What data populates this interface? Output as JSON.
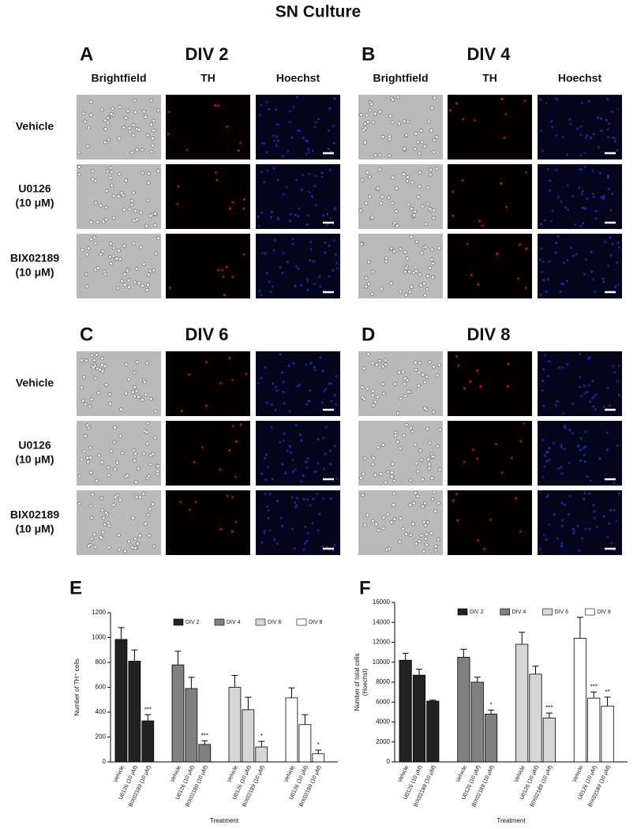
{
  "title": "SN Culture",
  "panels": [
    {
      "letter": "A",
      "title": "DIV 2",
      "columns": [
        "Brightfield",
        "TH",
        "Hoechst"
      ],
      "rows": [
        [
          "Vehicle"
        ],
        [
          "U0126",
          "(10 μM)"
        ],
        [
          "BIX02189",
          "(10 μM)"
        ]
      ]
    },
    {
      "letter": "B",
      "title": "DIV 4",
      "columns": [
        "Brightfield",
        "TH",
        "Hoechst"
      ]
    },
    {
      "letter": "C",
      "title": "DIV 6",
      "rows": [
        [
          "Vehicle"
        ],
        [
          "U0126",
          "(10 μM)"
        ],
        [
          "BIX02189",
          "(10 μM)"
        ]
      ]
    },
    {
      "letter": "D",
      "title": "DIV 8"
    }
  ],
  "chart_data": [
    {
      "type": "bar",
      "title": "E",
      "ylabel": [
        "Number of TH⁺ cells"
      ],
      "xlabel": "Treatment",
      "legend": "top",
      "categories": [
        "Vehicle",
        "U0126 (10 μM)",
        "BIX02189 (10 μM)"
      ],
      "ylim": [
        0,
        1200
      ],
      "yticks": [
        0,
        200,
        400,
        600,
        800,
        1000,
        1200
      ],
      "series": [
        {
          "name": "DIV 2",
          "color": "#222222",
          "values": [
            985,
            810,
            330
          ],
          "errors": [
            95,
            90,
            50
          ],
          "stars": [
            null,
            null,
            "***"
          ]
        },
        {
          "name": "DIV 4",
          "color": "#808080",
          "values": [
            780,
            590,
            140
          ],
          "errors": [
            110,
            90,
            30
          ],
          "stars": [
            null,
            null,
            "***"
          ]
        },
        {
          "name": "DIV 6",
          "color": "#d6d6d6",
          "values": [
            600,
            420,
            120
          ],
          "errors": [
            95,
            100,
            45
          ],
          "stars": [
            null,
            null,
            "*"
          ]
        },
        {
          "name": "DIV 8",
          "color": "#ffffff",
          "values": [
            515,
            300,
            65
          ],
          "errors": [
            80,
            80,
            30
          ],
          "stars": [
            null,
            null,
            "*"
          ]
        }
      ]
    },
    {
      "type": "bar",
      "title": "F",
      "ylabel": [
        "Number of total cells",
        "(Hoechst)"
      ],
      "xlabel": "Treatment",
      "legend": "top",
      "categories": [
        "Vehicle",
        "U0126 (10 μM)",
        "BIX02189 (10 μM)"
      ],
      "ylim": [
        0,
        16000
      ],
      "yticks": [
        0,
        2000,
        4000,
        6000,
        8000,
        10000,
        12000,
        14000,
        16000
      ],
      "series": [
        {
          "name": "DIV 2",
          "color": "#222222",
          "values": [
            10200,
            8700,
            6100
          ],
          "errors": [
            700,
            600,
            100
          ],
          "stars": [
            null,
            null,
            null
          ]
        },
        {
          "name": "DIV 4",
          "color": "#808080",
          "values": [
            10500,
            8000,
            4800
          ],
          "errors": [
            800,
            500,
            400
          ],
          "stars": [
            null,
            null,
            "*"
          ]
        },
        {
          "name": "DIV 6",
          "color": "#d6d6d6",
          "values": [
            11800,
            8800,
            4400
          ],
          "errors": [
            1200,
            800,
            500
          ],
          "stars": [
            null,
            null,
            "***"
          ]
        },
        {
          "name": "DIV 8",
          "color": "#ffffff",
          "values": [
            12400,
            6400,
            5600
          ],
          "errors": [
            2100,
            600,
            900
          ],
          "stars": [
            null,
            "***",
            "**"
          ]
        }
      ]
    }
  ]
}
